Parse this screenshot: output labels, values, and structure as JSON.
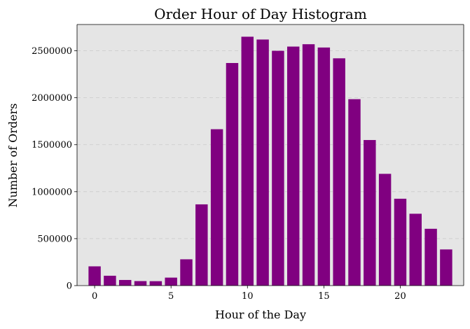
{
  "chart_data": {
    "type": "bar",
    "title": "Order Hour of Day Histogram",
    "xlabel": "Hour of the Day",
    "ylabel": "Number of Orders",
    "x": [
      0,
      1,
      2,
      3,
      4,
      5,
      6,
      7,
      8,
      9,
      10,
      11,
      12,
      13,
      14,
      15,
      16,
      17,
      18,
      19,
      20,
      21,
      22,
      23
    ],
    "values": [
      205000,
      105000,
      60000,
      48000,
      47000,
      85000,
      280000,
      865000,
      1665000,
      2370000,
      2650000,
      2620000,
      2500000,
      2545000,
      2570000,
      2535000,
      2420000,
      1985000,
      1550000,
      1190000,
      925000,
      765000,
      605000,
      385000
    ],
    "xlim": [
      -1.15,
      24.15
    ],
    "ylim": [
      0,
      2780000
    ],
    "xticks": [
      0,
      5,
      10,
      15,
      20
    ],
    "xtick_labels": [
      "0",
      "5",
      "10",
      "15",
      "20"
    ],
    "yticks": [
      0,
      500000,
      1000000,
      1500000,
      2000000,
      2500000
    ],
    "ytick_labels": [
      "0",
      "500000",
      "1000000",
      "1500000",
      "2000000",
      "2500000"
    ],
    "grid": "y-dashed",
    "colors": {
      "bar": "#800080",
      "plot_bg": "#e5e5e5",
      "grid": "#cccccc",
      "axis": "#000000"
    }
  }
}
